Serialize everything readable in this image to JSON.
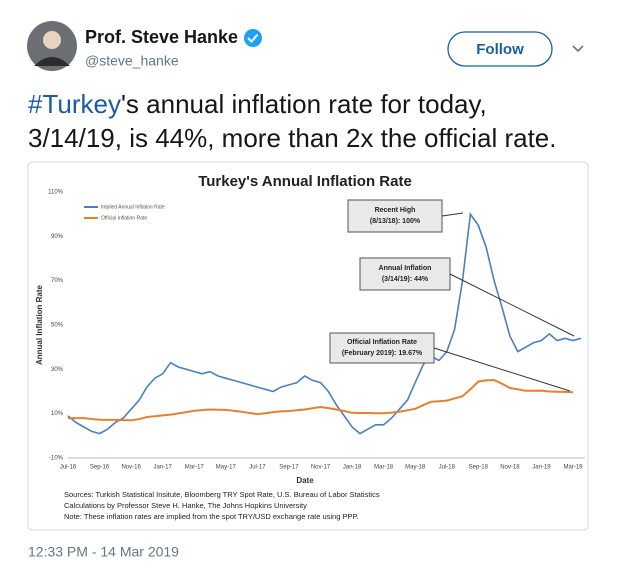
{
  "user": {
    "name": "Prof. Steve Hanke",
    "handle": "@steve_hanke"
  },
  "follow_button": "Follow",
  "tweet": {
    "hashtag": "#Turkey",
    "text": [
      "'s annual inflation rate for today,",
      "3/14/19, is 44%, more than 2x the official rate."
    ]
  },
  "timestamp": "12:33 PM - 14 Mar 2019",
  "chart_data": {
    "type": "line",
    "title": "Turkey's Annual Inflation Rate",
    "x_label": "Date",
    "y_label": "Annual Inflation Rate",
    "categories": [
      "Jul-16",
      null,
      null,
      null,
      "Sep-16",
      null,
      null,
      null,
      "Nov-16",
      null,
      null,
      null,
      "Jan-17",
      null,
      null,
      null,
      "Mar-17",
      null,
      null,
      null,
      "May-17",
      null,
      null,
      null,
      "Jul-17",
      null,
      null,
      null,
      "Sep-17",
      null,
      null,
      null,
      "Nov-17",
      null,
      null,
      null,
      "Jan-18",
      null,
      null,
      null,
      "Mar-18",
      null,
      null,
      null,
      "May-18",
      null,
      null,
      null,
      "Jul-18",
      null,
      null,
      null,
      "Sep-18",
      null,
      null,
      null,
      "Nov-18",
      null,
      null,
      null,
      "Jan-19",
      null,
      null,
      null,
      "Mar-19",
      null
    ],
    "series": [
      {
        "name": "Implied Annual Inflation Rate",
        "color": "#4a7fc1",
        "values": [
          9,
          6,
          4,
          2,
          1,
          3,
          6,
          8,
          12,
          16,
          22,
          26,
          28,
          33,
          31,
          30,
          29,
          28,
          29,
          27,
          26,
          25,
          24,
          23,
          22,
          21,
          20,
          22,
          23,
          24,
          27,
          25,
          24,
          20,
          14,
          9,
          4,
          1,
          3,
          5,
          5,
          8,
          12,
          16,
          24,
          32,
          36,
          34,
          38,
          48,
          70,
          100,
          95,
          85,
          70,
          58,
          45,
          38,
          40,
          42,
          43,
          46,
          43,
          44,
          43,
          44
        ]
      },
      {
        "name": "Official Inflation Rate",
        "color": "#e4812f",
        "values": [
          8,
          8,
          8,
          7.6,
          7.3,
          7.2,
          7.2,
          7.1,
          7,
          7.5,
          8.5,
          8.8,
          9.2,
          9.6,
          10.1,
          10.7,
          11.3,
          11.6,
          11.9,
          11.8,
          11.7,
          11.3,
          10.9,
          10.3,
          9.8,
          10.2,
          10.7,
          11,
          11.2,
          11.5,
          11.9,
          12.4,
          13,
          12.5,
          11.9,
          11.2,
          10.4,
          10.3,
          10.3,
          10.2,
          10.2,
          10.5,
          10.9,
          11.5,
          12.2,
          13.8,
          15.4,
          15.6,
          15.9,
          16.9,
          17.9,
          21,
          24.5,
          25,
          25.2,
          23.5,
          21.6,
          21,
          20.3,
          20.3,
          20.4,
          20,
          19.9,
          19.8,
          19.67,
          null
        ]
      }
    ],
    "ylim": [
      -10,
      110
    ],
    "yticks": [
      {
        "value": -10,
        "label": "-10%"
      },
      {
        "value": 10,
        "label": "10%"
      },
      {
        "value": 30,
        "label": "30%"
      },
      {
        "value": 50,
        "label": "50%"
      },
      {
        "value": 70,
        "label": "70%"
      },
      {
        "value": 90,
        "label": "90%"
      },
      {
        "value": 110,
        "label": "110%"
      }
    ],
    "grid": false,
    "legend": "upper left",
    "annotations": [
      {
        "text": [
          "Recent High",
          "(8/13/18): 100%"
        ]
      },
      {
        "text": [
          "Annual Inflation",
          "(3/14/19): 44%"
        ]
      },
      {
        "text": [
          "Official Inflation Rate",
          "(February 2019): 19.67%"
        ]
      }
    ],
    "notes": [
      "Sources: Turkish Statistical Insitute, Bloomberg TRY Spot Rate, U.S. Bureau of Labor Statistics",
      "Calculations by Professor Steve H. Hanke, The Johns Hopkins University",
      "Note: These inflation rates are implied from the spot TRY/USD exchange rate using PPP."
    ]
  }
}
